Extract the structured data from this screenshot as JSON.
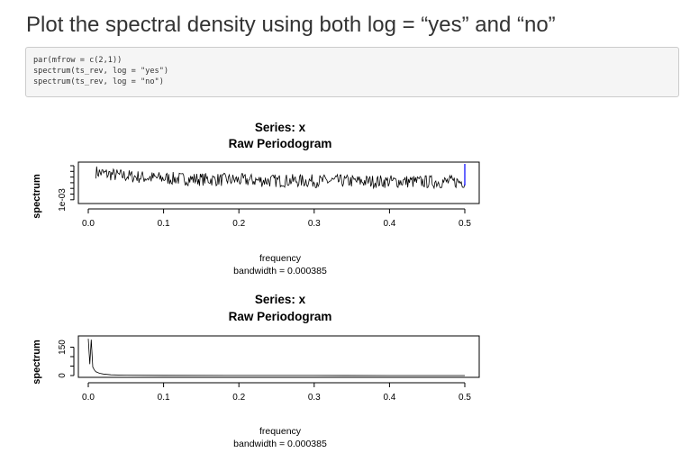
{
  "heading": "Plot the spectral density using both log = “yes” and “no”",
  "code": {
    "lines": [
      "par(mfrow = c(2,1))",
      "spectrum(ts_rev, log = \"yes\")",
      "spectrum(ts_rev, log = \"no\")"
    ]
  },
  "chart_data": [
    {
      "type": "line",
      "title": "Series: x",
      "subtitle": "Raw Periodogram",
      "xlabel": "frequency",
      "xlabel2": "bandwidth = 0.000385",
      "ylabel": "spectrum",
      "xlim": [
        0.0,
        0.5
      ],
      "x_ticks": [
        "0.0",
        "0.1",
        "0.2",
        "0.3",
        "0.4",
        "0.5"
      ],
      "y_ticks": [
        "1e-03"
      ],
      "log_y": true,
      "ci_bar_color": "#0000ff",
      "line_color": "#000000",
      "series": [
        {
          "x": [
            0.0,
            0.02,
            0.04,
            0.06,
            0.08,
            0.1,
            0.12,
            0.14,
            0.16,
            0.18,
            0.2,
            0.22,
            0.24,
            0.26,
            0.28,
            0.3,
            0.32,
            0.34,
            0.36,
            0.38,
            0.4,
            0.42,
            0.44,
            0.46,
            0.48,
            0.5
          ],
          "y": [
            0.008,
            0.006,
            0.005,
            0.0045,
            0.004,
            0.0038,
            0.0036,
            0.0035,
            0.0034,
            0.0033,
            0.0032,
            0.0031,
            0.003,
            0.003,
            0.003,
            0.0029,
            0.0029,
            0.0029,
            0.0028,
            0.0028,
            0.0028,
            0.0028,
            0.0027,
            0.0027,
            0.0027,
            0.0027
          ]
        }
      ]
    },
    {
      "type": "line",
      "title": "Series: x",
      "subtitle": "Raw Periodogram",
      "xlabel": "frequency",
      "xlabel2": "bandwidth = 0.000385",
      "ylabel": "spectrum",
      "xlim": [
        0.0,
        0.5
      ],
      "ylim": [
        0,
        200
      ],
      "x_ticks": [
        "0.0",
        "0.1",
        "0.2",
        "0.3",
        "0.4",
        "0.5"
      ],
      "y_ticks": [
        "0",
        "150"
      ],
      "log_y": false,
      "line_color": "#000000",
      "series": [
        {
          "x": [
            0.0,
            0.002,
            0.004,
            0.006,
            0.008,
            0.01,
            0.015,
            0.02,
            0.03,
            0.05,
            0.1,
            0.2,
            0.3,
            0.4,
            0.5
          ],
          "y": [
            195,
            60,
            190,
            45,
            30,
            20,
            12,
            8,
            4,
            2,
            1,
            0.5,
            0.3,
            0.2,
            0.2
          ]
        }
      ]
    }
  ]
}
